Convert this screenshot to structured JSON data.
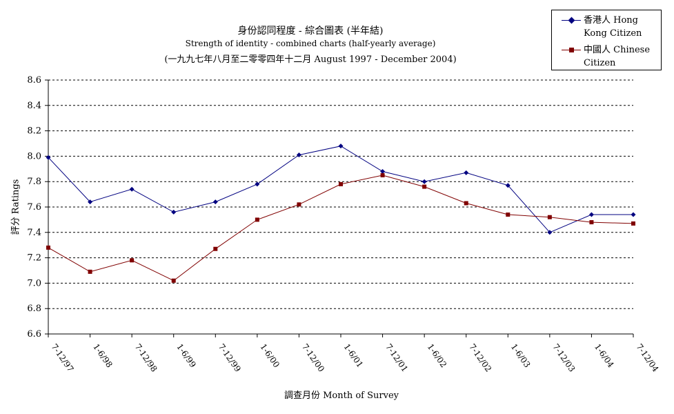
{
  "chart_data": {
    "type": "line",
    "title": "身份認同程度 - 綜合圖表 (半年結)",
    "subtitle": "Strength of identity - combined charts (half-yearly average)",
    "subtitle2": "(一九九七年八月至二零零四年十二月 August 1997 - December 2004)",
    "xlabel": "調查月份 Month of Survey",
    "ylabel": "評分 Ratings",
    "categories": [
      "7-12/97",
      "1-6/98",
      "7-12/98",
      "1-6/99",
      "7-12/99",
      "1-6/00",
      "7-12/00",
      "1-6/01",
      "7-12/01",
      "1-6/02",
      "7-12/02",
      "1-6/03",
      "7-12/03",
      "1-6/04",
      "7-12/04"
    ],
    "ylim": [
      6.6,
      8.6
    ],
    "yticks": [
      "6.6",
      "6.8",
      "7.0",
      "7.2",
      "7.4",
      "7.6",
      "7.8",
      "8.0",
      "8.2",
      "8.4",
      "8.6"
    ],
    "grid": "horizontal dashed",
    "legend_position": "top-right",
    "series": [
      {
        "name": "香港人 Hong Kong Citizen",
        "color": "#000080",
        "marker": "diamond",
        "values": [
          7.99,
          7.64,
          7.74,
          7.56,
          7.64,
          7.78,
          8.01,
          8.08,
          7.88,
          7.8,
          7.87,
          7.77,
          7.4,
          7.54,
          7.54
        ]
      },
      {
        "name": "中國人 Chinese Citizen",
        "color": "#800000",
        "marker": "square",
        "values": [
          7.28,
          7.09,
          7.18,
          7.02,
          7.27,
          7.5,
          7.62,
          7.78,
          7.85,
          7.76,
          7.63,
          7.54,
          7.52,
          7.48,
          7.47
        ]
      }
    ]
  },
  "legend": {
    "hk_text": "香港人 Hong\nKong Citizen",
    "cn_text": "中國人 Chinese\nCitizen"
  }
}
